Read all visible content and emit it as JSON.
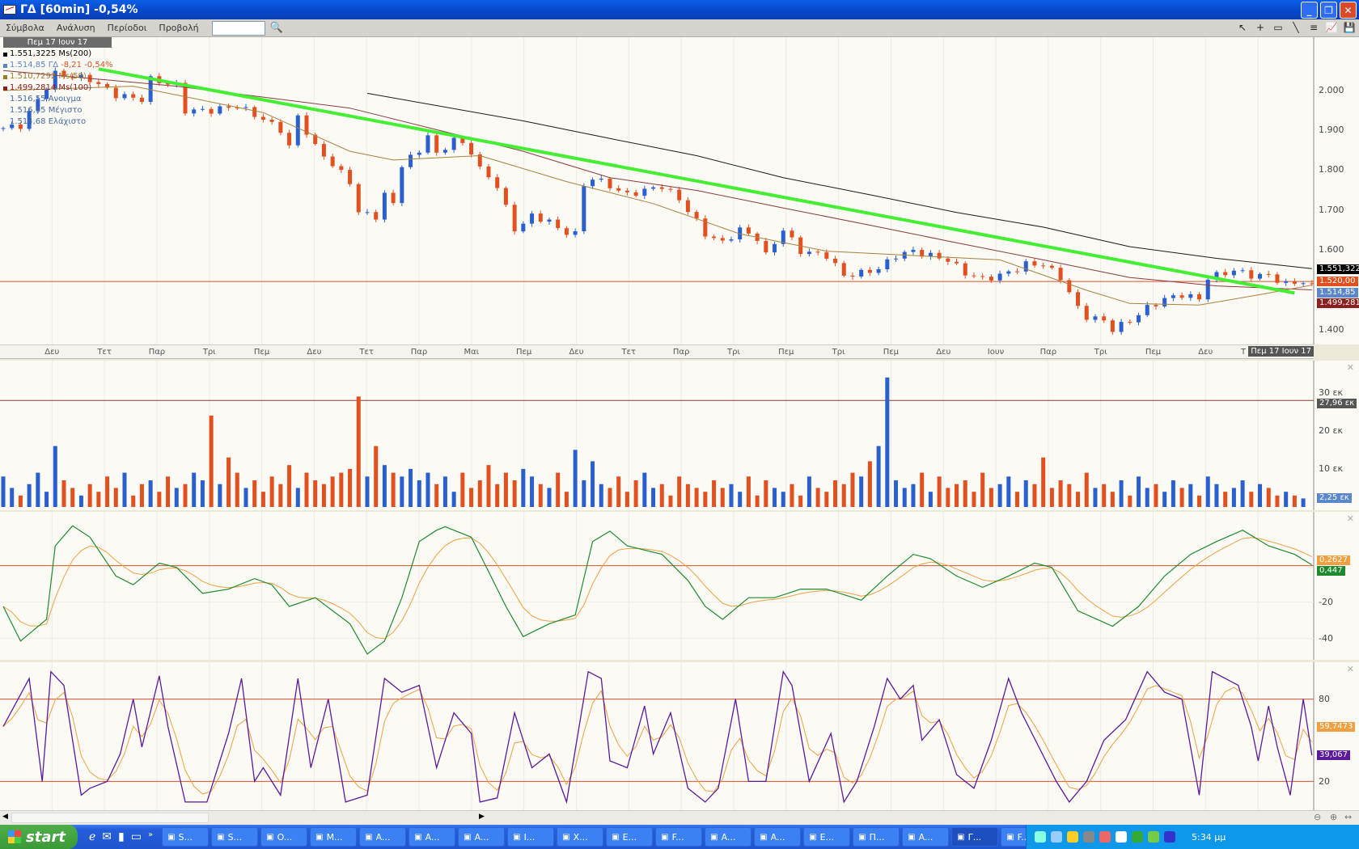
{
  "window": {
    "title": "ΓΔ [60min] -0,54%",
    "minimize": "_",
    "restore": "❐",
    "close": "✕"
  },
  "menu": {
    "items": [
      "Σύμβολα",
      "Ανάλυση",
      "Περίοδοι",
      "Προβολή"
    ],
    "search_value": ""
  },
  "toolbar": {
    "icons": [
      "pointer-icon",
      "crosshair-icon",
      "rectangle-icon",
      "line-icon",
      "hlines-icon",
      "chart-icon",
      "save-icon"
    ]
  },
  "legend": {
    "date": "Πεμ 17 Ιουν 17",
    "rows": [
      {
        "text": "1.551,3225 Ms(200)",
        "color": "#000000"
      },
      {
        "text": "1.514,85 ΓΔ",
        "change": "-8,21 -0,54%",
        "color": "#5b86c8"
      },
      {
        "text": "1.510,7292 Ms(50)",
        "color": "#a0782a"
      },
      {
        "text": "1.499,2814 Ms(100)",
        "color": "#8b2020"
      },
      {
        "text": "1.516,55 Ανοιγμα",
        "color": "#4a6aa0"
      },
      {
        "text": "1.516,55 Μέγιστο",
        "color": "#4a6aa0"
      },
      {
        "text": "1.514,68 Ελάχιστο",
        "color": "#4a6aa0"
      }
    ]
  },
  "colors": {
    "up": "#2a5fd0",
    "down": "#e2501f",
    "ma200": "#1a1a1a",
    "ma100": "#8b3a3a",
    "ma50": "#a8823c",
    "trend": "#44ee33",
    "hline": "#d8502c",
    "macd": "#1e8a2e",
    "signal": "#f0a040",
    "stoch": "#5a1a9a",
    "stoch_signal": "#f0a040"
  },
  "date_axis": {
    "labels": [
      "Δευ",
      "Τετ",
      "Παρ",
      "Τρι",
      "Πεμ",
      "Δευ",
      "Τετ",
      "Παρ",
      "Μαι",
      "Πεμ",
      "Δευ",
      "Τετ",
      "Παρ",
      "Τρι",
      "Πεμ",
      "Τρι",
      "Πεμ",
      "Δευ",
      "Ιουν",
      "Παρ",
      "Τρι",
      "Πεμ",
      "Δευ",
      "Τ"
    ],
    "current": "Πεμ 17 Ιουν 17"
  },
  "chart_data": [
    {
      "type": "candlestick",
      "panel": "price",
      "yticks": [
        "2.000",
        "1.900",
        "1.800",
        "1.700",
        "1.600",
        "1.400"
      ],
      "ylim": [
        1.38,
        2.1
      ],
      "close_path": [
        [
          0,
          1.904
        ],
        [
          2,
          1.91
        ],
        [
          6,
          2.04
        ],
        [
          10,
          2.026
        ],
        [
          13,
          1.987
        ],
        [
          16,
          1.976
        ],
        [
          17,
          2.026
        ],
        [
          20,
          2.01
        ],
        [
          21,
          1.948
        ],
        [
          24,
          1.948
        ],
        [
          27,
          1.96
        ],
        [
          30,
          1.926
        ],
        [
          32,
          1.9
        ],
        [
          33,
          1.857
        ],
        [
          34,
          1.933
        ],
        [
          36,
          1.857
        ],
        [
          38,
          1.813
        ],
        [
          40,
          1.77
        ],
        [
          41,
          1.693
        ],
        [
          43,
          1.683
        ],
        [
          44,
          1.737
        ],
        [
          45,
          1.715
        ],
        [
          46,
          1.813
        ],
        [
          48,
          1.846
        ],
        [
          49,
          1.889
        ],
        [
          50,
          1.835
        ],
        [
          52,
          1.878
        ],
        [
          54,
          1.846
        ],
        [
          55,
          1.802
        ],
        [
          57,
          1.76
        ],
        [
          58,
          1.704
        ],
        [
          59,
          1.65
        ],
        [
          61,
          1.683
        ],
        [
          63,
          1.672
        ],
        [
          64,
          1.65
        ],
        [
          66,
          1.639
        ],
        [
          67,
          1.76
        ],
        [
          68,
          1.78
        ],
        [
          70,
          1.759
        ],
        [
          72,
          1.737
        ],
        [
          74,
          1.748
        ],
        [
          76,
          1.759
        ],
        [
          78,
          1.726
        ],
        [
          80,
          1.67
        ],
        [
          81,
          1.639
        ],
        [
          83,
          1.617
        ],
        [
          85,
          1.65
        ],
        [
          87,
          1.628
        ],
        [
          88,
          1.585
        ],
        [
          90,
          1.65
        ],
        [
          92,
          1.596
        ],
        [
          95,
          1.585
        ],
        [
          97,
          1.535
        ],
        [
          99,
          1.541
        ],
        [
          101,
          1.552
        ],
        [
          103,
          1.585
        ],
        [
          105,
          1.596
        ],
        [
          106,
          1.59
        ],
        [
          109,
          1.574
        ],
        [
          111,
          1.541
        ],
        [
          113,
          1.526
        ],
        [
          115,
          1.535
        ],
        [
          117,
          1.552
        ],
        [
          118,
          1.563
        ],
        [
          120,
          1.563
        ],
        [
          122,
          1.53
        ],
        [
          124,
          1.454
        ],
        [
          125,
          1.432
        ],
        [
          127,
          1.422
        ],
        [
          128,
          1.4
        ],
        [
          130,
          1.422
        ],
        [
          132,
          1.454
        ],
        [
          134,
          1.476
        ],
        [
          136,
          1.487
        ],
        [
          138,
          1.476
        ],
        [
          139,
          1.53
        ],
        [
          141,
          1.541
        ],
        [
          142,
          1.548
        ],
        [
          144,
          1.535
        ],
        [
          146,
          1.535
        ],
        [
          148,
          1.513
        ],
        [
          150,
          1.52
        ],
        [
          151,
          1.5149
        ]
      ],
      "ma200": [
        [
          42,
          1.991
        ],
        [
          60,
          1.922
        ],
        [
          70,
          1.878
        ],
        [
          80,
          1.835
        ],
        [
          90,
          1.78
        ],
        [
          100,
          1.737
        ],
        [
          110,
          1.693
        ],
        [
          120,
          1.656
        ],
        [
          130,
          1.607
        ],
        [
          140,
          1.578
        ],
        [
          151,
          1.552
        ]
      ],
      "ma100": [
        [
          0,
          2.048
        ],
        [
          20,
          2.009
        ],
        [
          40,
          1.954
        ],
        [
          50,
          1.9
        ],
        [
          60,
          1.846
        ],
        [
          70,
          1.78
        ],
        [
          80,
          1.748
        ],
        [
          90,
          1.704
        ],
        [
          100,
          1.661
        ],
        [
          110,
          1.617
        ],
        [
          120,
          1.574
        ],
        [
          130,
          1.53
        ],
        [
          140,
          1.509
        ],
        [
          151,
          1.499
        ]
      ],
      "ma50": [
        [
          0,
          1.998
        ],
        [
          15,
          2.009
        ],
        [
          30,
          1.943
        ],
        [
          40,
          1.846
        ],
        [
          45,
          1.824
        ],
        [
          55,
          1.835
        ],
        [
          65,
          1.77
        ],
        [
          75,
          1.715
        ],
        [
          85,
          1.639
        ],
        [
          95,
          1.596
        ],
        [
          105,
          1.585
        ],
        [
          115,
          1.574
        ],
        [
          125,
          1.498
        ],
        [
          130,
          1.465
        ],
        [
          138,
          1.461
        ],
        [
          145,
          1.487
        ],
        [
          151,
          1.511
        ]
      ],
      "trendline": [
        [
          11,
          2.052
        ],
        [
          149,
          1.491
        ]
      ],
      "hline": 1.52,
      "tags": [
        {
          "text": "1.551,322",
          "bg": "#000000"
        },
        {
          "text": "1.520,00",
          "bg": "#e2501f"
        },
        {
          "text": "1.514,85",
          "bg": "#5b86c8"
        },
        {
          "text": "1.499,281",
          "bg": "#8b2020"
        }
      ]
    },
    {
      "type": "bar",
      "panel": "volume",
      "yticks": [
        "30 εκ",
        "20 εκ",
        "10 εκ"
      ],
      "ylim": [
        0,
        33
      ],
      "hline": 27.96,
      "tags": [
        {
          "text": "27,96 εκ",
          "bg": "#555555"
        },
        {
          "text": "2,25 εκ",
          "bg": "#5b86c8"
        }
      ],
      "values": [
        8,
        5,
        3,
        6,
        9,
        4,
        16,
        7,
        5,
        3,
        6,
        4,
        8,
        5,
        9,
        3,
        6,
        7,
        4,
        8,
        5,
        6,
        9,
        7,
        24,
        6,
        13,
        9,
        5,
        7,
        4,
        8,
        6,
        11,
        5,
        9,
        7,
        6,
        8,
        9,
        10,
        29,
        8,
        16,
        11,
        9,
        8,
        10,
        7,
        9,
        6,
        8,
        4,
        9,
        5,
        7,
        11,
        6,
        9,
        7,
        10,
        8,
        6,
        5,
        9,
        4,
        15,
        7,
        12,
        6,
        5,
        8,
        4,
        7,
        9,
        5,
        6,
        3,
        8,
        6,
        5,
        4,
        7,
        5,
        6,
        4,
        8,
        3,
        7,
        5,
        4,
        6,
        3,
        8,
        5,
        4,
        7,
        6,
        9,
        8,
        12,
        16,
        34,
        7,
        5,
        6,
        9,
        4,
        8,
        5,
        6,
        7,
        4,
        9,
        5,
        6,
        8,
        4,
        7,
        6,
        13,
        5,
        7,
        6,
        4,
        9,
        5,
        6,
        4,
        7,
        3,
        8,
        5,
        6,
        4,
        7,
        5,
        6,
        3,
        8,
        6,
        4,
        5,
        7,
        4,
        6,
        5,
        3,
        4,
        3,
        2.25
      ]
    },
    {
      "type": "line",
      "panel": "oscillator",
      "yticks": [
        "-20",
        "-40"
      ],
      "hline": 0,
      "tags": [
        {
          "text": "0,2627",
          "bg": "#f0a040"
        },
        {
          "text": "0,447",
          "bg": "#1e8a2e"
        }
      ],
      "series": [
        [
          0,
          -22.4
        ],
        [
          2,
          -41.4
        ],
        [
          5,
          -29.5
        ],
        [
          6,
          10.9
        ],
        [
          8,
          21.9
        ],
        [
          10,
          15.7
        ],
        [
          13,
          -5.7
        ],
        [
          15,
          -10.5
        ],
        [
          18,
          1.4
        ],
        [
          20,
          -1
        ],
        [
          23,
          -15.2
        ],
        [
          26,
          -12.9
        ],
        [
          29,
          -7.1
        ],
        [
          31,
          -10.5
        ],
        [
          33,
          -22.4
        ],
        [
          36,
          -17.6
        ],
        [
          40,
          -31.9
        ],
        [
          42,
          -48.6
        ],
        [
          44,
          -41.4
        ],
        [
          46,
          -17.6
        ],
        [
          48,
          13.3
        ],
        [
          50,
          19.5
        ],
        [
          51,
          21.4
        ],
        [
          54,
          15.7
        ],
        [
          56,
          -3.3
        ],
        [
          58,
          -22.4
        ],
        [
          60,
          -39
        ],
        [
          63,
          -31.9
        ],
        [
          66,
          -27.1
        ],
        [
          68,
          13.3
        ],
        [
          70,
          19
        ],
        [
          72,
          10.9
        ],
        [
          76,
          6.2
        ],
        [
          79,
          -8.1
        ],
        [
          81,
          -22.4
        ],
        [
          83,
          -29.5
        ],
        [
          86,
          -17.6
        ],
        [
          89,
          -17.6
        ],
        [
          92,
          -12.9
        ],
        [
          95,
          -12.9
        ],
        [
          99,
          -19
        ],
        [
          102,
          -5.7
        ],
        [
          105,
          6.2
        ],
        [
          107,
          3.8
        ],
        [
          110,
          -5.7
        ],
        [
          113,
          -11.9
        ],
        [
          116,
          -5.7
        ],
        [
          119,
          1.4
        ],
        [
          121,
          -1
        ],
        [
          124,
          -24.8
        ],
        [
          128,
          -33.3
        ],
        [
          131,
          -22.4
        ],
        [
          134,
          -5.7
        ],
        [
          137,
          6.2
        ],
        [
          140,
          13.3
        ],
        [
          143,
          19.5
        ],
        [
          146,
          10.9
        ],
        [
          149,
          6.2
        ],
        [
          151,
          0.447
        ]
      ]
    },
    {
      "type": "line",
      "panel": "stochastic",
      "yticks": [
        "80",
        "20"
      ],
      "hlines": [
        80,
        20
      ],
      "tags": [
        {
          "text": "59,7473",
          "bg": "#f0a040"
        },
        {
          "text": "39,067",
          "bg": "#5a1a9a"
        }
      ],
      "series": [
        [
          0,
          60
        ],
        [
          3,
          95
        ],
        [
          4.5,
          20
        ],
        [
          5.5,
          100
        ],
        [
          7,
          90
        ],
        [
          9,
          10
        ],
        [
          10,
          15
        ],
        [
          12,
          20
        ],
        [
          13.5,
          40
        ],
        [
          15,
          80
        ],
        [
          16,
          45
        ],
        [
          18,
          97
        ],
        [
          19,
          60
        ],
        [
          21,
          5
        ],
        [
          23.5,
          5
        ],
        [
          26,
          55
        ],
        [
          27.5,
          95
        ],
        [
          29,
          20
        ],
        [
          30,
          30
        ],
        [
          32,
          10
        ],
        [
          34,
          95
        ],
        [
          35.5,
          30
        ],
        [
          37.5,
          80
        ],
        [
          39.5,
          5
        ],
        [
          42,
          10
        ],
        [
          44,
          95
        ],
        [
          46,
          85
        ],
        [
          48,
          90
        ],
        [
          50,
          30
        ],
        [
          52,
          70
        ],
        [
          54,
          55
        ],
        [
          55,
          5
        ],
        [
          57,
          8
        ],
        [
          59,
          70
        ],
        [
          61,
          30
        ],
        [
          63,
          40
        ],
        [
          65,
          5
        ],
        [
          67.5,
          100
        ],
        [
          69,
          95
        ],
        [
          70,
          35
        ],
        [
          72,
          30
        ],
        [
          74,
          75
        ],
        [
          75,
          40
        ],
        [
          77,
          70
        ],
        [
          79,
          15
        ],
        [
          81,
          5
        ],
        [
          82.5,
          15
        ],
        [
          84.5,
          80
        ],
        [
          86,
          20
        ],
        [
          88,
          20
        ],
        [
          90,
          100
        ],
        [
          91,
          90
        ],
        [
          93,
          20
        ],
        [
          95.5,
          55
        ],
        [
          97,
          5
        ],
        [
          98.5,
          20
        ],
        [
          100.5,
          60
        ],
        [
          102,
          95
        ],
        [
          103.5,
          80
        ],
        [
          105,
          90
        ],
        [
          106,
          50
        ],
        [
          108,
          65
        ],
        [
          110,
          25
        ],
        [
          112,
          15
        ],
        [
          114,
          50
        ],
        [
          116,
          95
        ],
        [
          117.5,
          70
        ],
        [
          119.5,
          45
        ],
        [
          121.5,
          20
        ],
        [
          123,
          5
        ],
        [
          125,
          20
        ],
        [
          127,
          50
        ],
        [
          129.5,
          65
        ],
        [
          132,
          100
        ],
        [
          134,
          85
        ],
        [
          136,
          80
        ],
        [
          138,
          10
        ],
        [
          139.5,
          100
        ],
        [
          141,
          95
        ],
        [
          142.5,
          90
        ],
        [
          144,
          60
        ],
        [
          144.8,
          35
        ],
        [
          146,
          75
        ],
        [
          147,
          45
        ],
        [
          148.5,
          10
        ],
        [
          150,
          80
        ],
        [
          151,
          39.067
        ]
      ]
    }
  ],
  "taskbar": {
    "start": "start",
    "quicklaunch": [
      "ie-icon",
      "outlook-icon",
      "media-icon",
      "desktop-icon"
    ],
    "buttons": [
      "S...",
      "S...",
      "O...",
      "M...",
      "A...",
      "A...",
      "A...",
      "I...",
      "X...",
      "E...",
      "F...",
      "A...",
      "A...",
      "E...",
      "Π...",
      "A...",
      "Γ...",
      "F..."
    ],
    "lang": "EL",
    "clock": "5:34 μμ"
  }
}
